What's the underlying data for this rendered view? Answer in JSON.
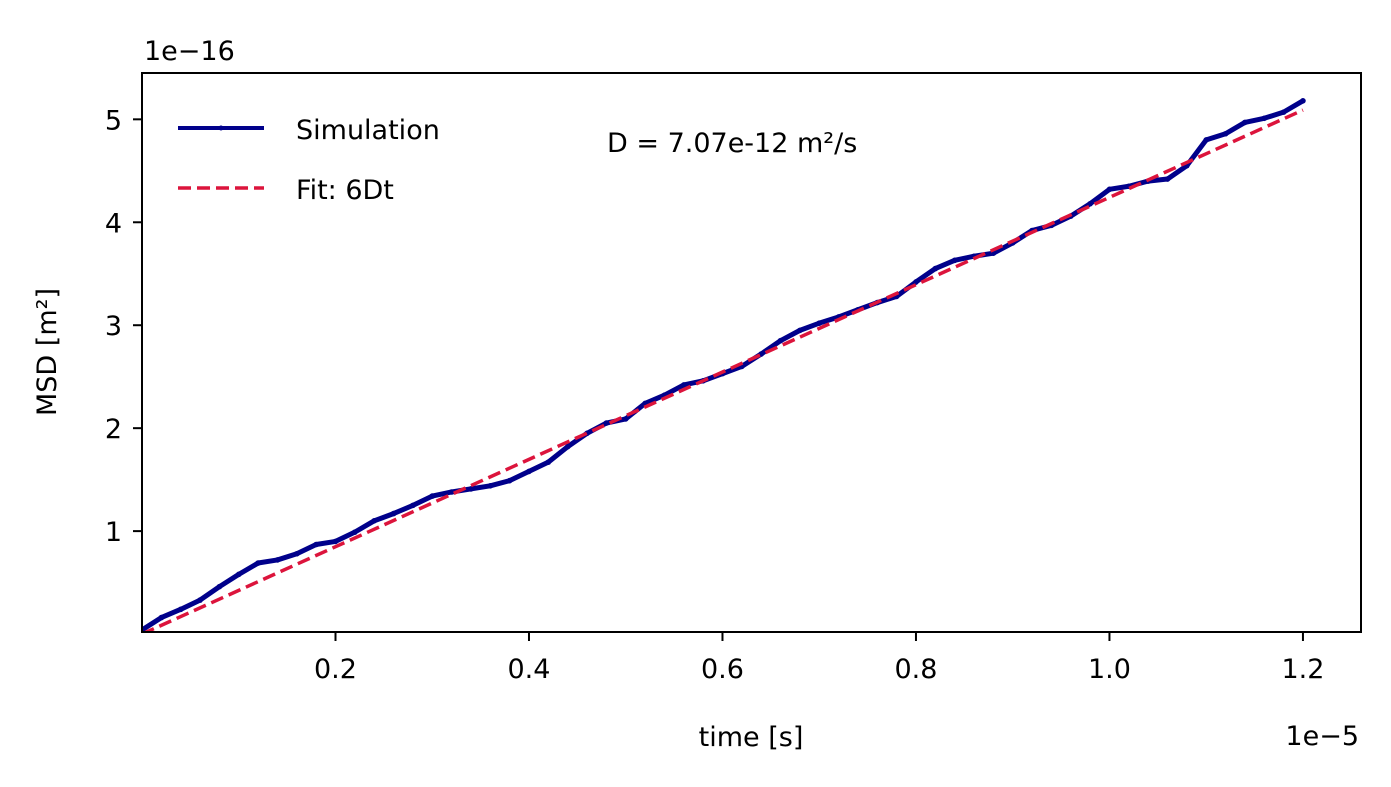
{
  "chart_data": {
    "type": "line",
    "title": "",
    "xlabel": "time [s]",
    "ylabel": "MSD [m²]",
    "x_offset_label": "1e−5",
    "y_offset_label": "1e−16",
    "x_scale": 1e-05,
    "y_scale": 1e-16,
    "xlim": [
      0.0,
      1.26
    ],
    "ylim": [
      0.02,
      5.45
    ],
    "xticks": [
      0.2,
      0.4,
      0.6,
      0.8,
      1.0,
      1.2
    ],
    "xtick_labels": [
      "0.2",
      "0.4",
      "0.6",
      "0.8",
      "1.0",
      "1.2"
    ],
    "yticks": [
      1,
      2,
      3,
      4,
      5
    ],
    "ytick_labels": [
      "1",
      "2",
      "3",
      "4",
      "5"
    ],
    "grid": false,
    "legend_position": "upper-left",
    "annotation": "D = 7.07e-12 m²/s",
    "series": [
      {
        "name": "Simulation",
        "style": "solid-with-markers",
        "color": "#00008b",
        "x": [
          0.0,
          0.02,
          0.04,
          0.06,
          0.08,
          0.1,
          0.12,
          0.14,
          0.16,
          0.18,
          0.2,
          0.22,
          0.24,
          0.26,
          0.28,
          0.3,
          0.32,
          0.34,
          0.36,
          0.38,
          0.4,
          0.42,
          0.44,
          0.46,
          0.48,
          0.5,
          0.52,
          0.54,
          0.56,
          0.58,
          0.6,
          0.62,
          0.64,
          0.66,
          0.68,
          0.7,
          0.72,
          0.74,
          0.76,
          0.78,
          0.8,
          0.82,
          0.84,
          0.86,
          0.88,
          0.9,
          0.92,
          0.94,
          0.96,
          0.98,
          1.0,
          1.02,
          1.04,
          1.06,
          1.08,
          1.1,
          1.12,
          1.14,
          1.16,
          1.18,
          1.2
        ],
        "values": [
          0.04,
          0.16,
          0.24,
          0.33,
          0.46,
          0.58,
          0.69,
          0.72,
          0.78,
          0.87,
          0.9,
          0.99,
          1.1,
          1.17,
          1.25,
          1.34,
          1.38,
          1.41,
          1.44,
          1.49,
          1.58,
          1.67,
          1.82,
          1.95,
          2.05,
          2.09,
          2.24,
          2.32,
          2.42,
          2.46,
          2.53,
          2.6,
          2.72,
          2.85,
          2.95,
          3.02,
          3.08,
          3.15,
          3.22,
          3.28,
          3.42,
          3.55,
          3.63,
          3.67,
          3.7,
          3.8,
          3.92,
          3.97,
          4.06,
          4.18,
          4.32,
          4.35,
          4.4,
          4.42,
          4.55,
          4.8,
          4.86,
          4.97,
          5.01,
          5.07,
          5.18
        ]
      },
      {
        "name": "Fit: 6Dt",
        "style": "dashed",
        "color": "#dc143c",
        "x": [
          0.0,
          1.2
        ],
        "values": [
          0.0,
          5.09
        ]
      }
    ]
  }
}
